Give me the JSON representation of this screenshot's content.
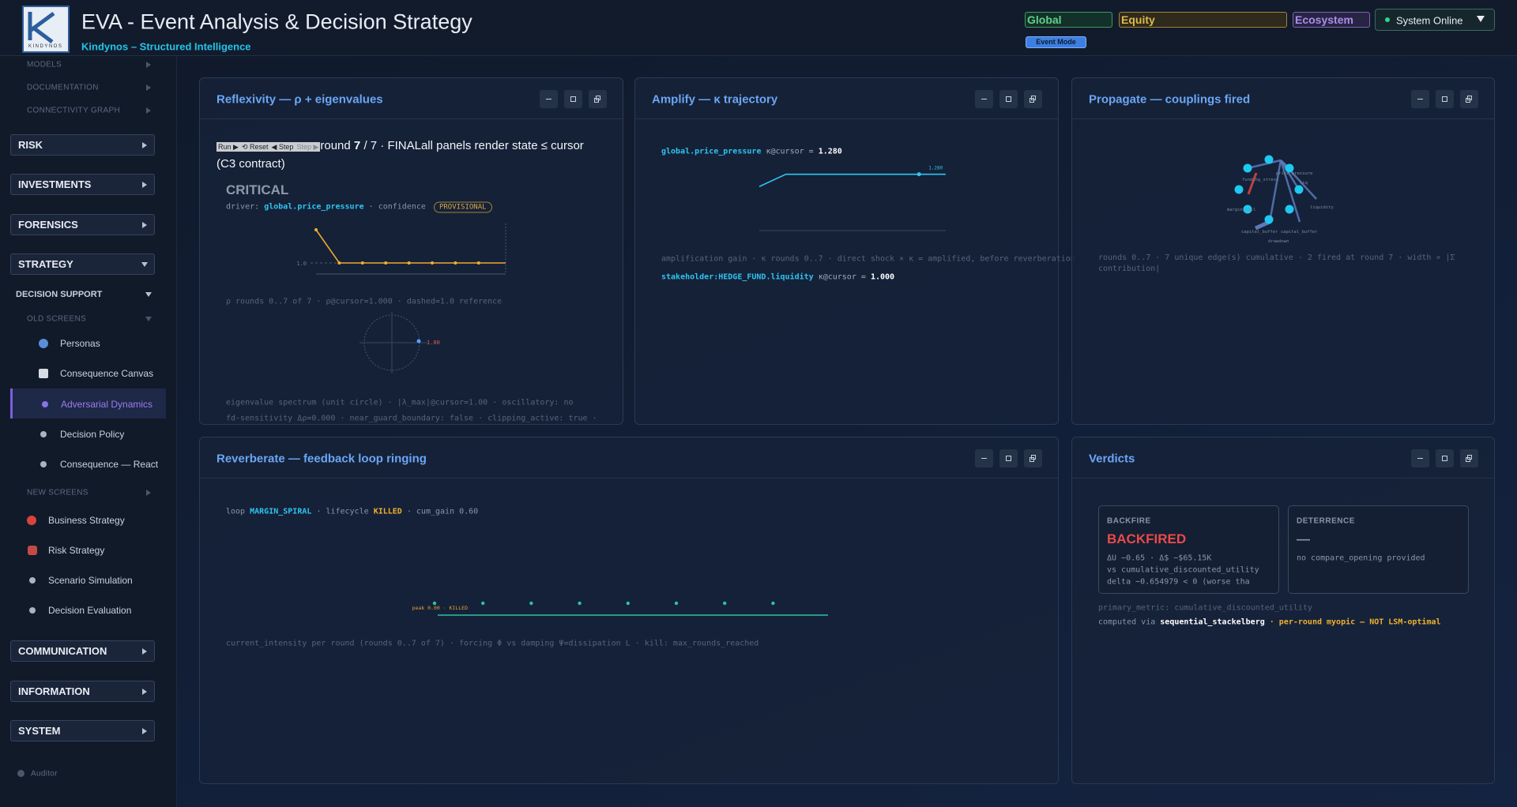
{
  "header": {
    "title": "EVA - Event Analysis & Decision Strategy",
    "subtitle": "Kindynos – Structured Intelligence",
    "logo_text": "KINDYNOS",
    "tabs": [
      "Global",
      "Equity",
      "Ecosystem"
    ],
    "status": "System Online",
    "mode_button": "Event Mode"
  },
  "sidebar": {
    "top_links": [
      "MODELS",
      "DOCUMENTATION",
      "CONNECTIVITY GRAPH"
    ],
    "sections_a": [
      "RISK",
      "INVESTMENTS",
      "FORENSICS",
      "STRATEGY"
    ],
    "decision_support": "DECISION SUPPORT",
    "old_screens": "OLD SCREENS",
    "old_items": [
      "Personas",
      "Consequence Canvas",
      "Adversarial Dynamics",
      "Decision Policy",
      "Consequence — React"
    ],
    "new_screens": "NEW SCREENS",
    "new_items": [
      "Business Strategy",
      "Risk Strategy",
      "Scenario Simulation",
      "Decision Evaluation"
    ],
    "sections_b": [
      "COMMUNICATION",
      "INFORMATION",
      "SYSTEM"
    ],
    "footer": "Auditor"
  },
  "reflexivity": {
    "title": "Reflexivity — ρ + eigenvalues",
    "controls": [
      "Run ▶",
      "⟲ Reset",
      "◀ Step",
      "Step ▶"
    ],
    "round_label": "round",
    "round": 7,
    "round_total": "/ 7 · FINAL",
    "contract": "all panels render state ≤ cursor (C3 contract)",
    "severity": "CRITICAL",
    "driver_label": "driver:",
    "driver": "global.price_pressure",
    "confidence_label": "· confidence",
    "badge": "PROVISIONAL",
    "rho": [
      1.6,
      1.0,
      1.0,
      1.0,
      1.0,
      1.0,
      1.0,
      1.0
    ],
    "ylim": [
      0.8,
      1.6
    ],
    "yticks": [
      {
        "value": 1,
        "label": "1.0"
      }
    ],
    "rho_caption": "ρ rounds 0..7 of 7 · ρ@cursor=1.000 · dashed=1.0 reference",
    "eigen": {
      "values": [
        1.0
      ],
      "value_labels": [
        "1.00"
      ]
    },
    "eigen_caption": "eigenvalue spectrum (unit circle) · |λ_max|@cursor=1.00 · oscillatory: no",
    "fd_caption": "fd-sensitivity Δρ=0.000 · near_guard_boundary: false · clipping_active: true ·"
  },
  "amplify": {
    "title": "Amplify — κ trajectory",
    "driver": "global.price_pressure",
    "cursor_label": "κ@cursor =",
    "cursor_value": "1.280",
    "kappa": [
      1.0,
      1.28,
      1.28,
      1.28,
      1.28,
      1.28,
      1.28,
      1.28
    ],
    "ylim": [
      0,
      1.4
    ],
    "marker_label": "1.280",
    "caption": "amplification gain · κ rounds 0..7 · direct shock × κ = amplified, before reverberation",
    "stakeholder": "stakeholder:HEDGE_FUND.liquidity",
    "stakeholder_label": "κ@cursor =",
    "stakeholder_value": "1.000"
  },
  "propagate": {
    "title": "Propagate — couplings fired",
    "nodes": [
      "price_pressure",
      "funding_stress",
      "liq",
      "margin_call",
      "liquidity",
      "capital_buffer",
      "capital_buffer",
      "drawdown"
    ],
    "caption": "rounds 0..7 · 7 unique edge(s) cumulative · 2 fired at round 7 · width ∝ |Σ contribution|"
  },
  "reverberate": {
    "title": "Reverberate — feedback loop ringing",
    "loop_label": "loop",
    "loop": "MARGIN_SPIRAL",
    "lifecycle_label": "· lifecycle",
    "lifecycle": "KILLED",
    "gain": "· cum_gain 0.60",
    "intensity": [
      0,
      0,
      0,
      0,
      0,
      0,
      0,
      0
    ],
    "ylim": [
      0,
      1
    ],
    "peak_label": "peak 0.00 · KILLED",
    "caption": "current_intensity per round (rounds 0..7 of 7) · forcing Φ vs damping Ψ=dissipation L · kill: max_rounds_reached"
  },
  "verdicts": {
    "title": "Verdicts",
    "cards": [
      {
        "label": "BACKFIRE",
        "verdict": "BACKFIRED",
        "lines": [
          "ΔU −0.65 · Δ$ −$65.15K",
          "vs cumulative_discounted_utility",
          "delta −0.654979 < 0 (worse tha"
        ]
      },
      {
        "label": "DETERRENCE",
        "verdict": "—",
        "lines": [
          "no compare_opening provided"
        ]
      }
    ],
    "primary_metric": "primary_metric: cumulative_discounted_utility",
    "computed_label": "computed via",
    "computed": "sequential_stackelberg",
    "computed_note": "· per-round myopic — NOT LSM-optimal"
  }
}
